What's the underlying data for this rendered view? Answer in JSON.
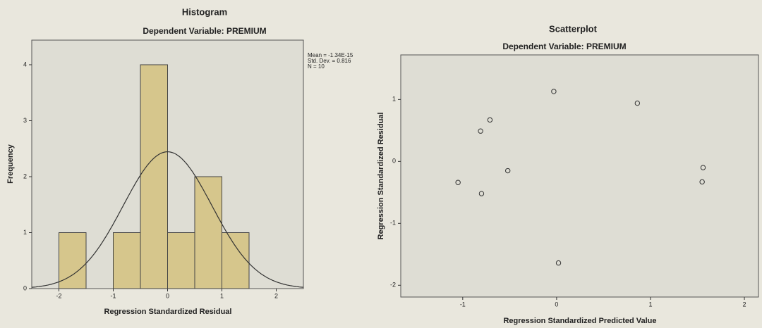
{
  "chart_data": [
    {
      "type": "histogram",
      "title": "Histogram",
      "subtitle": "Dependent Variable: PREMIUM",
      "x_label": "Regression Standardized Residual",
      "y_label": "Frequency",
      "bins": [
        -2,
        -1.5,
        -1,
        -0.5,
        0,
        0.5,
        1,
        1.5
      ],
      "counts": [
        1,
        0,
        1,
        4,
        1,
        2,
        1
      ],
      "color": "#d6c68c",
      "xlim": [
        -2.5,
        2.5
      ],
      "xticks": [
        -2,
        -1,
        0,
        1,
        2
      ],
      "ylim": [
        0,
        4.44
      ],
      "yticks": [
        0,
        1,
        2,
        3,
        4
      ],
      "annotations": [
        "Mean = -1.34E-15",
        "Std. Dev. = 0.816",
        "N = 10"
      ],
      "normal_curve": {
        "mean": -1.34e-15,
        "std": 0.816,
        "n": 10
      }
    },
    {
      "type": "scatter",
      "title": "Scatterplot",
      "subtitle": "Dependent Variable: PREMIUM",
      "x_label": "Regression Standardized Predicted Value",
      "y_label": "Regression Standardized Residual",
      "x": [
        -1.05,
        -0.81,
        -0.71,
        -0.8,
        -0.52,
        -0.03,
        0.02,
        0.86,
        1.56,
        1.55
      ],
      "values": [
        -0.34,
        0.49,
        0.67,
        -0.52,
        -0.15,
        1.13,
        -1.64,
        0.94,
        -0.1,
        -0.33
      ],
      "xlim": [
        -1.66,
        2.15
      ],
      "xticks": [
        -1,
        0,
        1,
        2
      ],
      "ylim": [
        -2.19,
        1.72
      ],
      "yticks": [
        -2,
        -1,
        0,
        1
      ]
    }
  ]
}
